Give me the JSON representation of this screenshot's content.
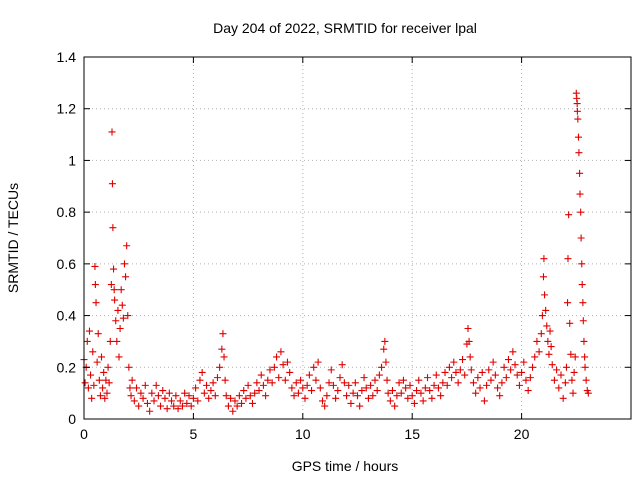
{
  "chart_data": {
    "type": "scatter",
    "title": "Day 204 of 2022, SRMTID for receiver lpal",
    "xlabel": "GPS time / hours",
    "ylabel": "SRMTID / TECUs",
    "xlim": [
      0,
      25
    ],
    "ylim": [
      0,
      1.4
    ],
    "xticks": [
      0,
      5,
      10,
      15,
      20
    ],
    "xtick_labels": [
      "0",
      "5",
      "10",
      "15",
      "20"
    ],
    "yticks": [
      0,
      0.2,
      0.4,
      0.6,
      0.8,
      1,
      1.2,
      1.4
    ],
    "ytick_labels": [
      "0",
      "0.2",
      "0.4",
      "0.6",
      "0.8",
      "1",
      "1.2",
      "1.4"
    ],
    "grid": true,
    "marker": "+",
    "colors": {
      "series": "#e00000",
      "axis": "#000000",
      "grid": "#b0b0b0"
    },
    "series": [
      {
        "name": "SRMTID",
        "points": [
          [
            0.0,
            0.23
          ],
          [
            0.05,
            0.14
          ],
          [
            0.1,
            0.2
          ],
          [
            0.15,
            0.3
          ],
          [
            0.2,
            0.12
          ],
          [
            0.25,
            0.34
          ],
          [
            0.3,
            0.17
          ],
          [
            0.35,
            0.08
          ],
          [
            0.4,
            0.26
          ],
          [
            0.45,
            0.13
          ],
          [
            0.5,
            0.59
          ],
          [
            0.52,
            0.52
          ],
          [
            0.55,
            0.45
          ],
          [
            0.6,
            0.22
          ],
          [
            0.65,
            0.33
          ],
          [
            0.7,
            0.15
          ],
          [
            0.75,
            0.09
          ],
          [
            0.8,
            0.24
          ],
          [
            0.85,
            0.12
          ],
          [
            0.9,
            0.18
          ],
          [
            0.95,
            0.08
          ],
          [
            1.0,
            0.15
          ],
          [
            1.05,
            0.1
          ],
          [
            1.1,
            0.2
          ],
          [
            1.15,
            0.14
          ],
          [
            1.2,
            0.3
          ],
          [
            1.25,
            0.52
          ],
          [
            1.28,
            1.11
          ],
          [
            1.3,
            0.91
          ],
          [
            1.32,
            0.74
          ],
          [
            1.35,
            0.58
          ],
          [
            1.38,
            0.5
          ],
          [
            1.4,
            0.46
          ],
          [
            1.45,
            0.38
          ],
          [
            1.5,
            0.3
          ],
          [
            1.55,
            0.42
          ],
          [
            1.6,
            0.24
          ],
          [
            1.65,
            0.35
          ],
          [
            1.7,
            0.5
          ],
          [
            1.75,
            0.44
          ],
          [
            1.8,
            0.39
          ],
          [
            1.85,
            0.6
          ],
          [
            1.9,
            0.55
          ],
          [
            1.95,
            0.67
          ],
          [
            2.0,
            0.4
          ],
          [
            2.05,
            0.2
          ],
          [
            2.1,
            0.12
          ],
          [
            2.15,
            0.09
          ],
          [
            2.2,
            0.15
          ],
          [
            2.3,
            0.07
          ],
          [
            2.4,
            0.12
          ],
          [
            2.5,
            0.05
          ],
          [
            2.6,
            0.1
          ],
          [
            2.7,
            0.08
          ],
          [
            2.8,
            0.13
          ],
          [
            2.9,
            0.06
          ],
          [
            3.0,
            0.03
          ],
          [
            3.1,
            0.1
          ],
          [
            3.2,
            0.07
          ],
          [
            3.3,
            0.13
          ],
          [
            3.4,
            0.09
          ],
          [
            3.5,
            0.05
          ],
          [
            3.6,
            0.11
          ],
          [
            3.7,
            0.08
          ],
          [
            3.8,
            0.04
          ],
          [
            3.9,
            0.1
          ],
          [
            4.0,
            0.07
          ],
          [
            4.1,
            0.05
          ],
          [
            4.2,
            0.09
          ],
          [
            4.3,
            0.04
          ],
          [
            4.4,
            0.07
          ],
          [
            4.5,
            0.05
          ],
          [
            4.6,
            0.1
          ],
          [
            4.7,
            0.06
          ],
          [
            4.8,
            0.09
          ],
          [
            4.9,
            0.05
          ],
          [
            5.0,
            0.08
          ],
          [
            5.1,
            0.12
          ],
          [
            5.2,
            0.07
          ],
          [
            5.3,
            0.15
          ],
          [
            5.4,
            0.18
          ],
          [
            5.5,
            0.1
          ],
          [
            5.6,
            0.13
          ],
          [
            5.7,
            0.08
          ],
          [
            5.8,
            0.11
          ],
          [
            5.9,
            0.14
          ],
          [
            6.0,
            0.09
          ],
          [
            6.1,
            0.16
          ],
          [
            6.2,
            0.2
          ],
          [
            6.3,
            0.27
          ],
          [
            6.35,
            0.33
          ],
          [
            6.4,
            0.24
          ],
          [
            6.45,
            0.15
          ],
          [
            6.5,
            0.09
          ],
          [
            6.6,
            0.05
          ],
          [
            6.7,
            0.08
          ],
          [
            6.8,
            0.03
          ],
          [
            6.9,
            0.07
          ],
          [
            7.0,
            0.05
          ],
          [
            7.1,
            0.09
          ],
          [
            7.2,
            0.06
          ],
          [
            7.3,
            0.11
          ],
          [
            7.4,
            0.08
          ],
          [
            7.5,
            0.13
          ],
          [
            7.6,
            0.09
          ],
          [
            7.7,
            0.06
          ],
          [
            7.8,
            0.1
          ],
          [
            7.9,
            0.14
          ],
          [
            8.0,
            0.11
          ],
          [
            8.1,
            0.17
          ],
          [
            8.2,
            0.13
          ],
          [
            8.3,
            0.09
          ],
          [
            8.4,
            0.15
          ],
          [
            8.5,
            0.19
          ],
          [
            8.6,
            0.14
          ],
          [
            8.7,
            0.2
          ],
          [
            8.8,
            0.24
          ],
          [
            8.9,
            0.16
          ],
          [
            9.0,
            0.26
          ],
          [
            9.1,
            0.21
          ],
          [
            9.2,
            0.15
          ],
          [
            9.3,
            0.22
          ],
          [
            9.4,
            0.18
          ],
          [
            9.5,
            0.12
          ],
          [
            9.6,
            0.09
          ],
          [
            9.7,
            0.14
          ],
          [
            9.8,
            0.1
          ],
          [
            9.9,
            0.15
          ],
          [
            10.0,
            0.12
          ],
          [
            10.1,
            0.08
          ],
          [
            10.2,
            0.13
          ],
          [
            10.3,
            0.17
          ],
          [
            10.4,
            0.11
          ],
          [
            10.5,
            0.2
          ],
          [
            10.6,
            0.15
          ],
          [
            10.7,
            0.22
          ],
          [
            10.8,
            0.12
          ],
          [
            10.9,
            0.07
          ],
          [
            11.0,
            0.05
          ],
          [
            11.1,
            0.09
          ],
          [
            11.2,
            0.14
          ],
          [
            11.3,
            0.19
          ],
          [
            11.4,
            0.13
          ],
          [
            11.5,
            0.08
          ],
          [
            11.6,
            0.11
          ],
          [
            11.7,
            0.16
          ],
          [
            11.8,
            0.21
          ],
          [
            11.9,
            0.14
          ],
          [
            12.0,
            0.09
          ],
          [
            12.1,
            0.13
          ],
          [
            12.2,
            0.06
          ],
          [
            12.3,
            0.1
          ],
          [
            12.4,
            0.14
          ],
          [
            12.5,
            0.09
          ],
          [
            12.6,
            0.05
          ],
          [
            12.7,
            0.11
          ],
          [
            12.8,
            0.16
          ],
          [
            12.9,
            0.12
          ],
          [
            13.0,
            0.08
          ],
          [
            13.1,
            0.13
          ],
          [
            13.2,
            0.09
          ],
          [
            13.3,
            0.15
          ],
          [
            13.4,
            0.11
          ],
          [
            13.5,
            0.17
          ],
          [
            13.6,
            0.2
          ],
          [
            13.7,
            0.27
          ],
          [
            13.75,
            0.3
          ],
          [
            13.8,
            0.22
          ],
          [
            13.85,
            0.15
          ],
          [
            13.9,
            0.1
          ],
          [
            14.0,
            0.07
          ],
          [
            14.1,
            0.11
          ],
          [
            14.2,
            0.05
          ],
          [
            14.3,
            0.09
          ],
          [
            14.4,
            0.14
          ],
          [
            14.5,
            0.1
          ],
          [
            14.6,
            0.15
          ],
          [
            14.7,
            0.12
          ],
          [
            14.8,
            0.08
          ],
          [
            14.9,
            0.13
          ],
          [
            15.0,
            0.09
          ],
          [
            15.1,
            0.06
          ],
          [
            15.2,
            0.11
          ],
          [
            15.3,
            0.15
          ],
          [
            15.4,
            0.1
          ],
          [
            15.5,
            0.07
          ],
          [
            15.6,
            0.12
          ],
          [
            15.7,
            0.16
          ],
          [
            15.8,
            0.11
          ],
          [
            15.9,
            0.08
          ],
          [
            16.0,
            0.13
          ],
          [
            16.1,
            0.17
          ],
          [
            16.2,
            0.12
          ],
          [
            16.3,
            0.09
          ],
          [
            16.4,
            0.14
          ],
          [
            16.5,
            0.18
          ],
          [
            16.6,
            0.13
          ],
          [
            16.7,
            0.2
          ],
          [
            16.8,
            0.16
          ],
          [
            16.9,
            0.22
          ],
          [
            17.0,
            0.18
          ],
          [
            17.1,
            0.14
          ],
          [
            17.2,
            0.19
          ],
          [
            17.3,
            0.23
          ],
          [
            17.4,
            0.17
          ],
          [
            17.5,
            0.29
          ],
          [
            17.55,
            0.35
          ],
          [
            17.6,
            0.3
          ],
          [
            17.65,
            0.24
          ],
          [
            17.7,
            0.19
          ],
          [
            17.8,
            0.14
          ],
          [
            17.9,
            0.1
          ],
          [
            18.0,
            0.16
          ],
          [
            18.1,
            0.12
          ],
          [
            18.2,
            0.18
          ],
          [
            18.3,
            0.07
          ],
          [
            18.4,
            0.13
          ],
          [
            18.5,
            0.19
          ],
          [
            18.6,
            0.15
          ],
          [
            18.7,
            0.22
          ],
          [
            18.8,
            0.17
          ],
          [
            18.9,
            0.12
          ],
          [
            19.0,
            0.09
          ],
          [
            19.1,
            0.14
          ],
          [
            19.2,
            0.2
          ],
          [
            19.3,
            0.16
          ],
          [
            19.4,
            0.23
          ],
          [
            19.5,
            0.19
          ],
          [
            19.6,
            0.26
          ],
          [
            19.7,
            0.21
          ],
          [
            19.8,
            0.17
          ],
          [
            19.9,
            0.13
          ],
          [
            20.0,
            0.18
          ],
          [
            20.1,
            0.22
          ],
          [
            20.2,
            0.15
          ],
          [
            20.3,
            0.11
          ],
          [
            20.4,
            0.16
          ],
          [
            20.5,
            0.2
          ],
          [
            20.6,
            0.24
          ],
          [
            20.7,
            0.3
          ],
          [
            20.8,
            0.26
          ],
          [
            20.9,
            0.33
          ],
          [
            20.95,
            0.4
          ],
          [
            21.0,
            0.55
          ],
          [
            21.02,
            0.62
          ],
          [
            21.05,
            0.48
          ],
          [
            21.1,
            0.42
          ],
          [
            21.15,
            0.36
          ],
          [
            21.2,
            0.3
          ],
          [
            21.25,
            0.25
          ],
          [
            21.3,
            0.34
          ],
          [
            21.35,
            0.28
          ],
          [
            21.4,
            0.21
          ],
          [
            21.5,
            0.15
          ],
          [
            21.6,
            0.19
          ],
          [
            21.7,
            0.12
          ],
          [
            21.8,
            0.17
          ],
          [
            21.9,
            0.08
          ],
          [
            22.0,
            0.14
          ],
          [
            22.05,
            0.2
          ],
          [
            22.1,
            0.45
          ],
          [
            22.12,
            0.62
          ],
          [
            22.15,
            0.79
          ],
          [
            22.2,
            0.37
          ],
          [
            22.25,
            0.25
          ],
          [
            22.3,
            0.15
          ],
          [
            22.35,
            0.1
          ],
          [
            22.4,
            0.18
          ],
          [
            22.45,
            0.24
          ],
          [
            22.5,
            1.26
          ],
          [
            22.52,
            1.24
          ],
          [
            22.54,
            1.22
          ],
          [
            22.55,
            1.19
          ],
          [
            22.57,
            1.16
          ],
          [
            22.6,
            1.09
          ],
          [
            22.62,
            1.03
          ],
          [
            22.65,
            0.95
          ],
          [
            22.67,
            0.87
          ],
          [
            22.7,
            0.8
          ],
          [
            22.72,
            0.7
          ],
          [
            22.75,
            0.6
          ],
          [
            22.77,
            0.52
          ],
          [
            22.8,
            0.45
          ],
          [
            22.82,
            0.38
          ],
          [
            22.85,
            0.3
          ],
          [
            22.88,
            0.24
          ],
          [
            22.9,
            0.2
          ],
          [
            22.95,
            0.15
          ],
          [
            23.0,
            0.11
          ],
          [
            23.05,
            0.1
          ]
        ]
      }
    ]
  }
}
